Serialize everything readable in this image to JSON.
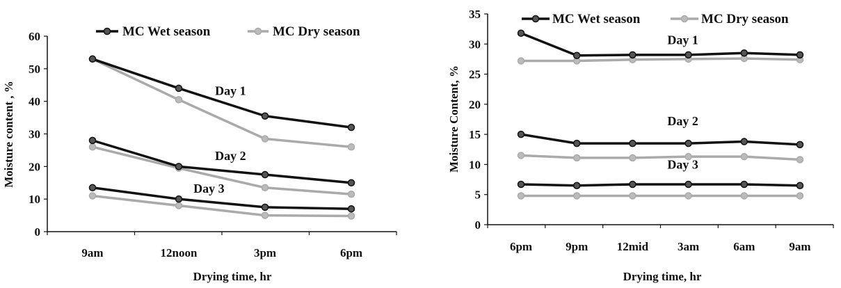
{
  "chart_data": [
    {
      "type": "line",
      "xlabel": "Drying time, hr",
      "ylabel": "Moisture content , %",
      "categories": [
        "9am",
        "12noon",
        "3pm",
        "6pm"
      ],
      "ylim": [
        0,
        60
      ],
      "yticks": [
        0,
        10,
        20,
        30,
        40,
        50,
        60
      ],
      "grid": false,
      "legend_position": "top",
      "legend": [
        "MC Wet season",
        "MC Dry season"
      ],
      "series": [
        {
          "name": "MC Wet season",
          "group": "Day 1",
          "color": "#111111",
          "values": [
            53,
            44,
            35.5,
            32
          ]
        },
        {
          "name": "MC Dry season",
          "group": "Day 1",
          "color": "#aaaaaa",
          "values": [
            53,
            40.5,
            28.5,
            26
          ]
        },
        {
          "name": "MC Wet season",
          "group": "Day 2",
          "color": "#111111",
          "values": [
            28,
            20,
            17.5,
            15
          ]
        },
        {
          "name": "MC Dry season",
          "group": "Day 2",
          "color": "#aaaaaa",
          "values": [
            26,
            19.5,
            13.5,
            11.5
          ]
        },
        {
          "name": "MC Wet season",
          "group": "Day 3",
          "color": "#111111",
          "values": [
            13.5,
            10,
            7.5,
            7
          ]
        },
        {
          "name": "MC Dry season",
          "group": "Day 3",
          "color": "#aaaaaa",
          "values": [
            11,
            8,
            5,
            4.8
          ]
        }
      ],
      "annotations": [
        {
          "text": "Day 1",
          "x": 1.6,
          "y": 42
        },
        {
          "text": "Day 2",
          "x": 1.6,
          "y": 22
        },
        {
          "text": "Day 3",
          "x": 1.35,
          "y": 12
        }
      ]
    },
    {
      "type": "line",
      "xlabel": "Drying time, hr",
      "ylabel": "Moisture Content, %",
      "categories": [
        "6pm",
        "9pm",
        "12mid",
        "3am",
        "6am",
        "9am"
      ],
      "ylim": [
        0,
        35
      ],
      "yticks": [
        0,
        5,
        10,
        15,
        20,
        25,
        30,
        35
      ],
      "grid": false,
      "legend_position": "top",
      "legend": [
        "MC Wet season",
        "MC Dry season"
      ],
      "series": [
        {
          "name": "MC Wet season",
          "group": "Day 1",
          "color": "#111111",
          "values": [
            31.8,
            28.1,
            28.2,
            28.2,
            28.5,
            28.2
          ]
        },
        {
          "name": "MC Dry season",
          "group": "Day 1",
          "color": "#aaaaaa",
          "values": [
            27.2,
            27.2,
            27.4,
            27.5,
            27.6,
            27.4
          ]
        },
        {
          "name": "MC Wet season",
          "group": "Day 2",
          "color": "#111111",
          "values": [
            15,
            13.5,
            13.5,
            13.5,
            13.8,
            13.3
          ]
        },
        {
          "name": "MC Dry season",
          "group": "Day 2",
          "color": "#aaaaaa",
          "values": [
            11.5,
            11.1,
            11.1,
            11.3,
            11.3,
            10.8
          ]
        },
        {
          "name": "MC Wet season",
          "group": "Day 3",
          "color": "#111111",
          "values": [
            6.7,
            6.5,
            6.7,
            6.7,
            6.7,
            6.5
          ]
        },
        {
          "name": "MC Dry season",
          "group": "Day 3",
          "color": "#aaaaaa",
          "values": [
            4.8,
            4.8,
            4.8,
            4.8,
            4.8,
            4.8
          ]
        }
      ],
      "annotations": [
        {
          "text": "Day 1",
          "x": 2.9,
          "y": 30
        },
        {
          "text": "Day 2",
          "x": 2.9,
          "y": 16.5
        },
        {
          "text": "Day 3",
          "x": 2.9,
          "y": 9.3
        }
      ]
    }
  ]
}
